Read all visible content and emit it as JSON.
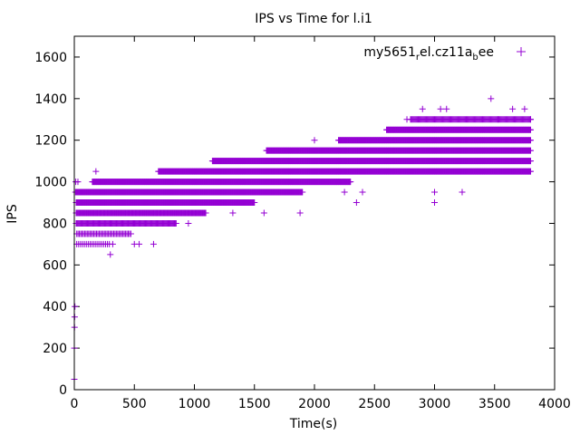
{
  "chart_data": {
    "type": "scatter",
    "title": "IPS vs Time for l.i1",
    "xlabel": "Time(s)",
    "ylabel": "IPS",
    "xlim": [
      0,
      4000
    ],
    "ylim": [
      0,
      1700
    ],
    "x_ticks": [
      "0",
      "500",
      "1000",
      "1500",
      "2000",
      "2500",
      "3000",
      "3500",
      "4000"
    ],
    "y_ticks": [
      "0",
      "200",
      "400",
      "600",
      "800",
      "1000",
      "1200",
      "1400",
      "1600"
    ],
    "x_tick_values": [
      0,
      500,
      1000,
      1500,
      2000,
      2500,
      3000,
      3500,
      4000
    ],
    "y_tick_values": [
      0,
      200,
      400,
      600,
      800,
      1000,
      1200,
      1400,
      1600
    ],
    "grid": false,
    "legend": {
      "position": "top-right",
      "label": {
        "pre": "my5651",
        "sub1": "r",
        "mid": "el.cz11a",
        "sub2": "b",
        "post": "ee"
      }
    },
    "marker": "+",
    "color": "#9400d3",
    "series": [
      {
        "bands": [
          {
            "y": 700,
            "x_start": 20,
            "x_end": 300,
            "step": 16
          },
          {
            "y": 750,
            "x_start": 20,
            "x_end": 480,
            "step": 11
          },
          {
            "y": 800,
            "x_start": 15,
            "x_end": 850,
            "step": 7
          },
          {
            "y": 850,
            "x_start": 15,
            "x_end": 1100,
            "step": 6
          },
          {
            "y": 900,
            "x_start": 15,
            "x_end": 1500,
            "step": 5
          },
          {
            "y": 950,
            "x_start": 15,
            "x_end": 1900,
            "step": 5
          },
          {
            "y": 1000,
            "x_start": 150,
            "x_end": 2300,
            "step": 5
          },
          {
            "y": 1050,
            "x_start": 700,
            "x_end": 3800,
            "step": 5
          },
          {
            "y": 1100,
            "x_start": 1150,
            "x_end": 3800,
            "step": 5
          },
          {
            "y": 1150,
            "x_start": 1600,
            "x_end": 3800,
            "step": 5
          },
          {
            "y": 1200,
            "x_start": 2200,
            "x_end": 3800,
            "step": 5
          },
          {
            "y": 1250,
            "x_start": 2600,
            "x_end": 3800,
            "step": 5
          },
          {
            "y": 1300,
            "x_start": 2800,
            "x_end": 3800,
            "step": 8
          }
        ],
        "points": [
          [
            0,
            50
          ],
          [
            0,
            200
          ],
          [
            2,
            300
          ],
          [
            3,
            350
          ],
          [
            5,
            400
          ],
          [
            10,
            950
          ],
          [
            12,
            1000
          ],
          [
            30,
            1000
          ],
          [
            180,
            1050
          ],
          [
            300,
            650
          ],
          [
            320,
            700
          ],
          [
            500,
            700
          ],
          [
            540,
            700
          ],
          [
            660,
            700
          ],
          [
            950,
            800
          ],
          [
            1320,
            850
          ],
          [
            1580,
            850
          ],
          [
            1880,
            850
          ],
          [
            2000,
            1200
          ],
          [
            2250,
            950
          ],
          [
            2350,
            900
          ],
          [
            2400,
            950
          ],
          [
            2770,
            1300
          ],
          [
            2900,
            1350
          ],
          [
            3000,
            900
          ],
          [
            3000,
            950
          ],
          [
            3050,
            1350
          ],
          [
            3100,
            1350
          ],
          [
            3230,
            950
          ],
          [
            3470,
            1400
          ],
          [
            3530,
            1300
          ],
          [
            3650,
            1350
          ],
          [
            3750,
            1350
          ],
          [
            3800,
            1300
          ]
        ]
      }
    ]
  }
}
